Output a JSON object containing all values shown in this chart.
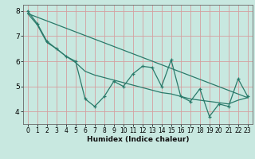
{
  "xlabel": "Humidex (Indice chaleur)",
  "ylabel": "",
  "xlim": [
    -0.5,
    23.5
  ],
  "ylim": [
    3.5,
    8.25
  ],
  "yticks": [
    4,
    5,
    6,
    7,
    8
  ],
  "xticks": [
    0,
    1,
    2,
    3,
    4,
    5,
    6,
    7,
    8,
    9,
    10,
    11,
    12,
    13,
    14,
    15,
    16,
    17,
    18,
    19,
    20,
    21,
    22,
    23
  ],
  "bg_color": "#c8e8e0",
  "grid_color": "#d4a0a0",
  "line_color": "#2a7a6a",
  "series1_x": [
    0,
    1,
    2,
    3,
    4,
    5,
    6,
    7,
    8,
    9,
    10,
    11,
    12,
    13,
    14,
    15,
    16,
    17,
    18,
    19,
    20,
    21,
    22,
    23
  ],
  "series1_y": [
    8.0,
    7.5,
    6.8,
    6.5,
    6.2,
    6.0,
    4.5,
    4.2,
    4.6,
    5.2,
    5.0,
    5.5,
    5.8,
    5.75,
    5.0,
    6.05,
    4.6,
    4.4,
    4.9,
    3.8,
    4.3,
    4.2,
    5.3,
    4.6
  ],
  "series2_x": [
    0,
    1,
    2,
    3,
    4,
    5,
    6,
    7,
    8,
    9,
    10,
    11,
    12,
    13,
    14,
    15,
    16,
    17,
    18,
    19,
    20,
    21,
    22,
    23
  ],
  "series2_y": [
    7.9,
    7.45,
    6.75,
    6.5,
    6.2,
    5.95,
    5.6,
    5.45,
    5.35,
    5.25,
    5.15,
    5.05,
    4.95,
    4.85,
    4.75,
    4.7,
    4.6,
    4.5,
    4.45,
    4.4,
    4.35,
    4.3,
    4.45,
    4.55
  ],
  "trend_x": [
    0,
    23
  ],
  "trend_y": [
    7.9,
    4.55
  ]
}
